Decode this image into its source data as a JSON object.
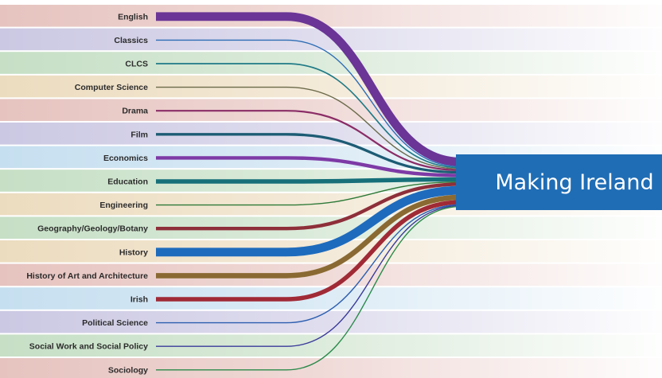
{
  "title": "Making Ireland",
  "target": {
    "label": "Making Ireland",
    "color": "#1f6db5"
  },
  "chart_data": {
    "type": "sankey",
    "target": "Making Ireland",
    "nodes": [
      {
        "label": "English",
        "color": "#6a3596",
        "band": "#e6c3bf",
        "weight": 10
      },
      {
        "label": "Classics",
        "color": "#2d6db5",
        "band": "#cbc8e3",
        "weight": 1
      },
      {
        "label": "CLCS",
        "color": "#1f7a86",
        "band": "#c6dfc5",
        "weight": 1.5
      },
      {
        "label": "Computer Science",
        "color": "#6b6a4a",
        "band": "#ecdcbf",
        "weight": 1
      },
      {
        "label": "Drama",
        "color": "#8a2c66",
        "band": "#e6c3bf",
        "weight": 2
      },
      {
        "label": "Film",
        "color": "#1c5c74",
        "band": "#cbc8e3",
        "weight": 3
      },
      {
        "label": "Economics",
        "color": "#7e3aa6",
        "band": "#c6dff0",
        "weight": 4
      },
      {
        "label": "Education",
        "color": "#16707a",
        "band": "#c6dfc5",
        "weight": 5
      },
      {
        "label": "Engineering",
        "color": "#2e7a38",
        "band": "#ecdcbf",
        "weight": 1
      },
      {
        "label": "Geography/Geology/Botany",
        "color": "#8e2f3a",
        "band": "#c6dfc5",
        "weight": 4
      },
      {
        "label": "History",
        "color": "#1e6bbd",
        "band": "#ecdcbf",
        "weight": 10
      },
      {
        "label": "History of Art and Architecture",
        "color": "#8a6a32",
        "band": "#e6c3bf",
        "weight": 6
      },
      {
        "label": "Irish",
        "color": "#a02a36",
        "band": "#c6dff0",
        "weight": 5
      },
      {
        "label": "Political Science",
        "color": "#2d5fb0",
        "band": "#cbc8e3",
        "weight": 1
      },
      {
        "label": "Social Work and Social Policy",
        "color": "#3a3a9a",
        "band": "#c6dfc5",
        "weight": 1
      },
      {
        "label": "Sociology",
        "color": "#2a8a4a",
        "band": "#e6c3bf",
        "weight": 1
      }
    ]
  }
}
